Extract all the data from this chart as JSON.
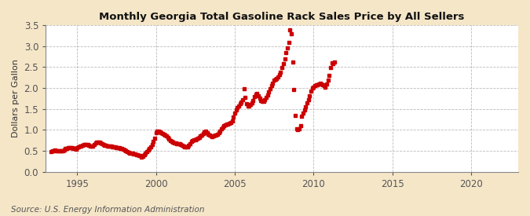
{
  "title": "Monthly Georgia Total Gasoline Rack Sales Price by All Sellers",
  "ylabel": "Dollars per Gallon",
  "source": "Source: U.S. Energy Information Administration",
  "fig_bg_color": "#F5E6C8",
  "plot_bg_color": "#FFFFFF",
  "marker_color": "#CC0000",
  "grid_color": "#AAAAAA",
  "xlim": [
    1993.0,
    2023.0
  ],
  "ylim": [
    0.0,
    3.5
  ],
  "yticks": [
    0.0,
    0.5,
    1.0,
    1.5,
    2.0,
    2.5,
    3.0,
    3.5
  ],
  "xticks": [
    1995,
    2000,
    2005,
    2010,
    2015,
    2020
  ],
  "data": [
    [
      1993.33,
      0.48
    ],
    [
      1993.42,
      0.5
    ],
    [
      1993.5,
      0.5
    ],
    [
      1993.58,
      0.52
    ],
    [
      1993.67,
      0.51
    ],
    [
      1993.75,
      0.5
    ],
    [
      1993.83,
      0.51
    ],
    [
      1993.92,
      0.51
    ],
    [
      1994.0,
      0.5
    ],
    [
      1994.08,
      0.51
    ],
    [
      1994.17,
      0.52
    ],
    [
      1994.25,
      0.55
    ],
    [
      1994.33,
      0.56
    ],
    [
      1994.42,
      0.57
    ],
    [
      1994.5,
      0.58
    ],
    [
      1994.58,
      0.57
    ],
    [
      1994.67,
      0.57
    ],
    [
      1994.75,
      0.56
    ],
    [
      1994.83,
      0.55
    ],
    [
      1994.92,
      0.54
    ],
    [
      1995.0,
      0.57
    ],
    [
      1995.08,
      0.6
    ],
    [
      1995.17,
      0.62
    ],
    [
      1995.25,
      0.62
    ],
    [
      1995.33,
      0.64
    ],
    [
      1995.42,
      0.65
    ],
    [
      1995.5,
      0.65
    ],
    [
      1995.58,
      0.66
    ],
    [
      1995.67,
      0.65
    ],
    [
      1995.75,
      0.63
    ],
    [
      1995.83,
      0.62
    ],
    [
      1995.92,
      0.61
    ],
    [
      1996.0,
      0.62
    ],
    [
      1996.08,
      0.65
    ],
    [
      1996.17,
      0.68
    ],
    [
      1996.25,
      0.7
    ],
    [
      1996.33,
      0.71
    ],
    [
      1996.42,
      0.7
    ],
    [
      1996.5,
      0.69
    ],
    [
      1996.58,
      0.67
    ],
    [
      1996.67,
      0.66
    ],
    [
      1996.75,
      0.64
    ],
    [
      1996.83,
      0.63
    ],
    [
      1996.92,
      0.62
    ],
    [
      1997.0,
      0.62
    ],
    [
      1997.08,
      0.62
    ],
    [
      1997.17,
      0.61
    ],
    [
      1997.25,
      0.6
    ],
    [
      1997.33,
      0.6
    ],
    [
      1997.42,
      0.59
    ],
    [
      1997.5,
      0.58
    ],
    [
      1997.58,
      0.57
    ],
    [
      1997.67,
      0.57
    ],
    [
      1997.75,
      0.56
    ],
    [
      1997.83,
      0.55
    ],
    [
      1997.92,
      0.53
    ],
    [
      1998.0,
      0.52
    ],
    [
      1998.08,
      0.5
    ],
    [
      1998.17,
      0.48
    ],
    [
      1998.25,
      0.46
    ],
    [
      1998.33,
      0.45
    ],
    [
      1998.42,
      0.44
    ],
    [
      1998.5,
      0.44
    ],
    [
      1998.58,
      0.43
    ],
    [
      1998.67,
      0.42
    ],
    [
      1998.75,
      0.41
    ],
    [
      1998.83,
      0.4
    ],
    [
      1998.92,
      0.38
    ],
    [
      1999.0,
      0.38
    ],
    [
      1999.08,
      0.36
    ],
    [
      1999.17,
      0.37
    ],
    [
      1999.25,
      0.4
    ],
    [
      1999.33,
      0.44
    ],
    [
      1999.42,
      0.48
    ],
    [
      1999.5,
      0.52
    ],
    [
      1999.58,
      0.56
    ],
    [
      1999.67,
      0.6
    ],
    [
      1999.75,
      0.65
    ],
    [
      1999.83,
      0.72
    ],
    [
      1999.92,
      0.8
    ],
    [
      2000.0,
      0.93
    ],
    [
      2000.08,
      0.97
    ],
    [
      2000.17,
      0.97
    ],
    [
      2000.25,
      0.95
    ],
    [
      2000.33,
      0.93
    ],
    [
      2000.42,
      0.91
    ],
    [
      2000.5,
      0.9
    ],
    [
      2000.58,
      0.88
    ],
    [
      2000.67,
      0.85
    ],
    [
      2000.75,
      0.82
    ],
    [
      2000.83,
      0.78
    ],
    [
      2000.92,
      0.74
    ],
    [
      2001.0,
      0.72
    ],
    [
      2001.08,
      0.7
    ],
    [
      2001.17,
      0.69
    ],
    [
      2001.25,
      0.68
    ],
    [
      2001.33,
      0.67
    ],
    [
      2001.42,
      0.67
    ],
    [
      2001.5,
      0.67
    ],
    [
      2001.58,
      0.65
    ],
    [
      2001.67,
      0.63
    ],
    [
      2001.75,
      0.62
    ],
    [
      2001.83,
      0.6
    ],
    [
      2001.92,
      0.59
    ],
    [
      2002.0,
      0.6
    ],
    [
      2002.08,
      0.63
    ],
    [
      2002.17,
      0.67
    ],
    [
      2002.25,
      0.72
    ],
    [
      2002.33,
      0.75
    ],
    [
      2002.42,
      0.76
    ],
    [
      2002.5,
      0.77
    ],
    [
      2002.58,
      0.78
    ],
    [
      2002.67,
      0.8
    ],
    [
      2002.75,
      0.82
    ],
    [
      2002.83,
      0.85
    ],
    [
      2002.92,
      0.88
    ],
    [
      2003.0,
      0.92
    ],
    [
      2003.08,
      0.95
    ],
    [
      2003.17,
      0.97
    ],
    [
      2003.25,
      0.94
    ],
    [
      2003.33,
      0.9
    ],
    [
      2003.42,
      0.87
    ],
    [
      2003.5,
      0.85
    ],
    [
      2003.58,
      0.84
    ],
    [
      2003.67,
      0.85
    ],
    [
      2003.75,
      0.87
    ],
    [
      2003.83,
      0.88
    ],
    [
      2003.92,
      0.9
    ],
    [
      2004.0,
      0.93
    ],
    [
      2004.08,
      0.97
    ],
    [
      2004.17,
      1.02
    ],
    [
      2004.25,
      1.07
    ],
    [
      2004.33,
      1.1
    ],
    [
      2004.42,
      1.12
    ],
    [
      2004.5,
      1.13
    ],
    [
      2004.58,
      1.14
    ],
    [
      2004.67,
      1.15
    ],
    [
      2004.75,
      1.18
    ],
    [
      2004.83,
      1.22
    ],
    [
      2004.92,
      1.3
    ],
    [
      2005.0,
      1.4
    ],
    [
      2005.08,
      1.48
    ],
    [
      2005.17,
      1.53
    ],
    [
      2005.25,
      1.57
    ],
    [
      2005.33,
      1.62
    ],
    [
      2005.42,
      1.67
    ],
    [
      2005.5,
      1.72
    ],
    [
      2005.58,
      1.98
    ],
    [
      2005.67,
      1.78
    ],
    [
      2005.75,
      1.62
    ],
    [
      2005.83,
      1.57
    ],
    [
      2005.92,
      1.57
    ],
    [
      2006.0,
      1.6
    ],
    [
      2006.08,
      1.65
    ],
    [
      2006.17,
      1.7
    ],
    [
      2006.25,
      1.8
    ],
    [
      2006.33,
      1.85
    ],
    [
      2006.42,
      1.87
    ],
    [
      2006.5,
      1.82
    ],
    [
      2006.58,
      1.75
    ],
    [
      2006.67,
      1.7
    ],
    [
      2006.75,
      1.68
    ],
    [
      2006.83,
      1.68
    ],
    [
      2006.92,
      1.72
    ],
    [
      2007.0,
      1.78
    ],
    [
      2007.08,
      1.84
    ],
    [
      2007.17,
      1.9
    ],
    [
      2007.25,
      1.98
    ],
    [
      2007.33,
      2.05
    ],
    [
      2007.42,
      2.12
    ],
    [
      2007.5,
      2.18
    ],
    [
      2007.58,
      2.2
    ],
    [
      2007.67,
      2.22
    ],
    [
      2007.75,
      2.26
    ],
    [
      2007.83,
      2.32
    ],
    [
      2007.92,
      2.38
    ],
    [
      2008.0,
      2.48
    ],
    [
      2008.08,
      2.58
    ],
    [
      2008.17,
      2.7
    ],
    [
      2008.25,
      2.85
    ],
    [
      2008.33,
      2.95
    ],
    [
      2008.42,
      3.08
    ],
    [
      2008.5,
      3.38
    ],
    [
      2008.58,
      3.3
    ],
    [
      2008.67,
      2.62
    ],
    [
      2008.75,
      1.97
    ],
    [
      2008.83,
      1.35
    ],
    [
      2008.92,
      1.03
    ],
    [
      2009.0,
      1.0
    ],
    [
      2009.08,
      1.03
    ],
    [
      2009.17,
      1.1
    ],
    [
      2009.25,
      1.32
    ],
    [
      2009.33,
      1.4
    ],
    [
      2009.42,
      1.48
    ],
    [
      2009.5,
      1.55
    ],
    [
      2009.58,
      1.65
    ],
    [
      2009.67,
      1.72
    ],
    [
      2009.75,
      1.82
    ],
    [
      2009.83,
      1.93
    ],
    [
      2009.92,
      2.0
    ],
    [
      2010.0,
      2.02
    ],
    [
      2010.08,
      2.05
    ],
    [
      2010.17,
      2.07
    ],
    [
      2010.25,
      2.08
    ],
    [
      2010.33,
      2.1
    ],
    [
      2010.42,
      2.12
    ],
    [
      2010.5,
      2.1
    ],
    [
      2010.58,
      2.07
    ],
    [
      2010.67,
      2.05
    ],
    [
      2010.75,
      2.02
    ],
    [
      2010.83,
      2.1
    ],
    [
      2010.92,
      2.18
    ],
    [
      2011.0,
      2.3
    ],
    [
      2011.08,
      2.48
    ],
    [
      2011.17,
      2.6
    ],
    [
      2011.25,
      2.58
    ],
    [
      2011.33,
      2.62
    ]
  ]
}
